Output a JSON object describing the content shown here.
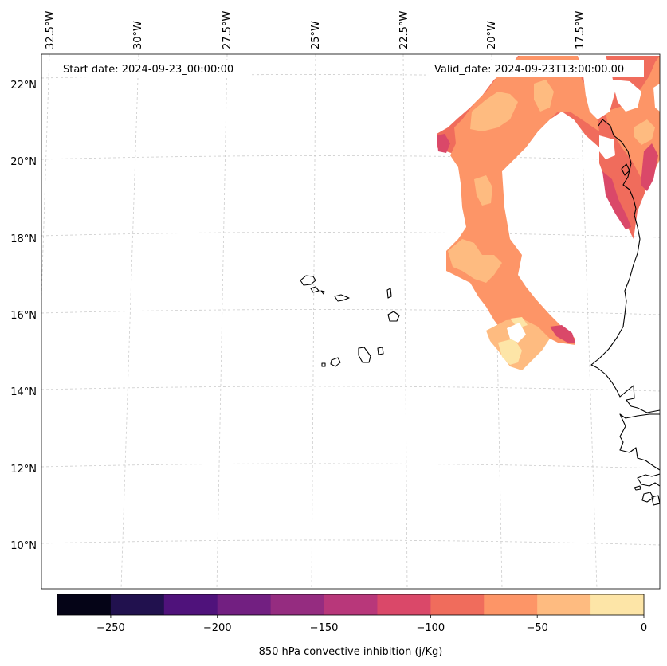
{
  "map": {
    "projection": "Lambert conformal",
    "start_date": "Start date: 2024-09-23_00:00:00",
    "valid_date": "Valid_date: 2024-09-23T13:00:00.00",
    "lon_labels": [
      "32.5°W",
      "30°W",
      "27.5°W",
      "25°W",
      "22.5°W",
      "20°W",
      "17.5°W"
    ],
    "lat_labels": [
      "22°N",
      "20°N",
      "18°N",
      "16°N",
      "14°N",
      "12°N",
      "10°N"
    ],
    "field": "850 hPa convective inhibition"
  },
  "colorbar": {
    "label": "850 hPa convective inhibition (j/Kg)",
    "min": -275,
    "max": 0,
    "tick_values": [
      -250,
      -200,
      -150,
      -100,
      -50,
      0
    ],
    "tick_labels": [
      "−250",
      "−200",
      "−150",
      "−100",
      "−50",
      "0"
    ],
    "bounds": [
      -275,
      -250,
      -225,
      -200,
      -175,
      -150,
      -125,
      -100,
      -75,
      -50,
      -25,
      0
    ],
    "colors": [
      "#050417",
      "#21114e",
      "#4f127b",
      "#721f81",
      "#952c80",
      "#b8377a",
      "#da4869",
      "#f06c5c",
      "#fd9567",
      "#febb80",
      "#fde5a7"
    ]
  },
  "colors": {
    "coastline": "#000000",
    "gridline": "#cccccc",
    "level_m100": "#f06c5c",
    "level_m75": "#fd9567",
    "level_m50": "#febb80",
    "level_m25": "#fde5a7",
    "level_m125": "#da4869"
  }
}
